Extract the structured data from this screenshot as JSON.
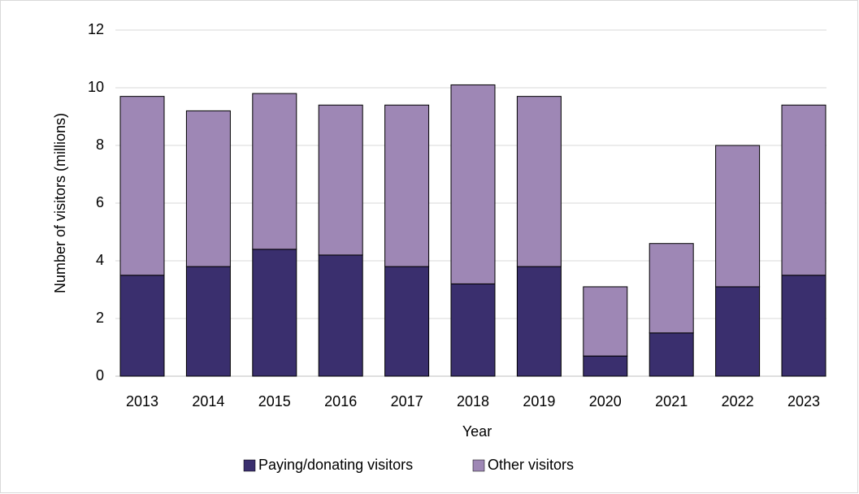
{
  "chart_data": {
    "type": "bar",
    "stacked": true,
    "x_label": "Year",
    "y_label": "Number of visitors (millions)",
    "categories": [
      "2013",
      "2014",
      "2015",
      "2016",
      "2017",
      "2018",
      "2019",
      "2020",
      "2021",
      "2022",
      "2023"
    ],
    "series": [
      {
        "name": "Paying/donating visitors",
        "color": "#3a2f6e",
        "values": [
          3.5,
          3.8,
          4.4,
          4.2,
          3.8,
          3.2,
          3.8,
          0.7,
          1.5,
          3.1,
          3.5
        ]
      },
      {
        "name": "Other visitors",
        "color": "#9e87b5",
        "values": [
          6.2,
          5.4,
          5.4,
          5.2,
          5.6,
          6.9,
          5.9,
          2.4,
          3.1,
          4.9,
          5.9
        ]
      }
    ],
    "ylim": [
      0,
      12
    ],
    "yticks": [
      0,
      2,
      4,
      6,
      8,
      10,
      12
    ],
    "grid": true,
    "legend": "bottom"
  }
}
